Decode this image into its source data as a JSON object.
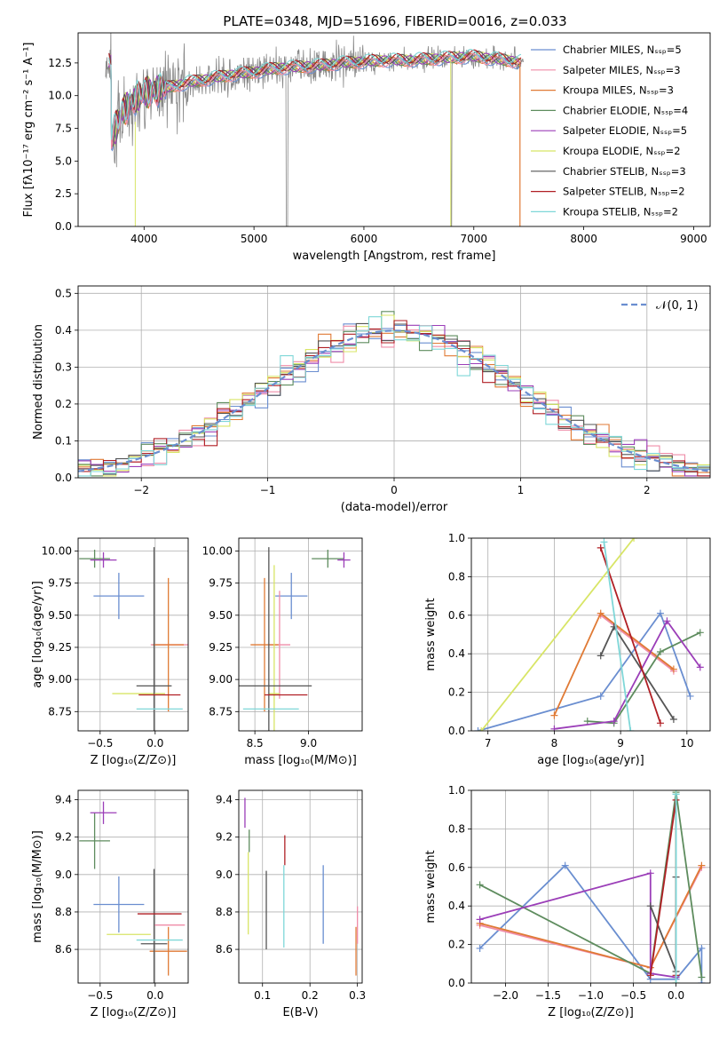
{
  "figure": {
    "title": "PLATE=0348, MJD=51696, FIBERID=0016, z=0.033"
  },
  "colors": [
    "#6a8ed0",
    "#ef8ca8",
    "#e07a35",
    "#5e8c5e",
    "#9b3eb8",
    "#d8e566",
    "#555555",
    "#b01f24",
    "#7fd7d8",
    "#888888"
  ],
  "chart_data": [
    {
      "type": "line",
      "id": "spectrum",
      "title": "PLATE=0348, MJD=51696, FIBERID=0016, z=0.033",
      "xlabel": "wavelength [Angstrom, rest frame]",
      "ylabel": "Flux [fλ10⁻¹⁷ erg cm⁻² s⁻¹ A⁻¹]",
      "xlim": [
        3400,
        9150
      ],
      "ylim": [
        0,
        14.8
      ],
      "xticks": [
        4000,
        5000,
        6000,
        7000,
        8000,
        9000
      ],
      "yticks": [
        0.0,
        2.5,
        5.0,
        7.5,
        10.0,
        12.5
      ],
      "legend_position": "top-right",
      "series": [
        {
          "name": "Chabrier MILES, Nₛₛₚ=5"
        },
        {
          "name": "Salpeter MILES, Nₛₛₚ=3"
        },
        {
          "name": "Kroupa MILES, Nₛₛₚ=3"
        },
        {
          "name": "Chabrier ELODIE, Nₛₛₚ=4"
        },
        {
          "name": "Salpeter ELODIE, Nₛₛₚ=5"
        },
        {
          "name": "Kroupa ELODIE, Nₛₛₚ=2"
        },
        {
          "name": "Chabrier STELIB, Nₛₛₚ=3"
        },
        {
          "name": "Salpeter STELIB, Nₛₛₚ=2"
        },
        {
          "name": "Kroupa STELIB, Nₛₛₚ=2"
        }
      ],
      "data_envelope": {
        "x": [
          3700,
          3800,
          3900,
          4000,
          4200,
          4400,
          4600,
          4800,
          5000,
          5200,
          5400,
          5600,
          5800,
          6000,
          6200,
          6400,
          6600,
          6800,
          7000,
          7200,
          7400
        ],
        "y": [
          6.6,
          8.8,
          9.6,
          10.2,
          10.6,
          11.0,
          11.3,
          11.6,
          11.8,
          12.1,
          12.2,
          12.3,
          12.5,
          12.6,
          12.7,
          12.7,
          12.8,
          12.9,
          13.0,
          12.8,
          12.6
        ]
      },
      "grid": false
    },
    {
      "type": "line",
      "id": "residuals",
      "xlabel": "(data-model)/error",
      "ylabel": "Normed distribution",
      "xlim": [
        -2.5,
        2.5
      ],
      "ylim": [
        0,
        0.52
      ],
      "xticks": [
        -2,
        -1,
        0,
        1,
        2
      ],
      "yticks": [
        0.0,
        0.1,
        0.2,
        0.3,
        0.4,
        0.5
      ],
      "legend": [
        {
          "name": "𝒩(0, 1)",
          "style": "dashed"
        }
      ],
      "legend_position": "top-right",
      "grid": true,
      "histogram_bins": [
        -2.5,
        2.5,
        0.1
      ],
      "reference_curve": "normal(0,1)"
    },
    {
      "type": "scatter",
      "id": "age-vs-Z",
      "xlabel": "Z [log₁₀(Z/Z⊙)]",
      "ylabel": "age  [log₁₀(age/yr)]",
      "xlim": [
        -0.7,
        0.3
      ],
      "ylim": [
        8.6,
        10.1
      ],
      "xticks": [
        -0.5,
        0.0
      ],
      "yticks": [
        8.75,
        9.0,
        9.25,
        9.5,
        9.75,
        10.0
      ],
      "grid": true,
      "points": [
        {
          "x": -0.33,
          "y": 9.65,
          "xerr": 0.23,
          "yerr": 0.18,
          "c": 0
        },
        {
          "x": 0.13,
          "y": 9.27,
          "xerr": 0.17,
          "yerr": 0.0,
          "c": 1
        },
        {
          "x": 0.12,
          "y": 9.27,
          "xerr": 0.14,
          "yerr": 0.52,
          "c": 2
        },
        {
          "x": -0.55,
          "y": 9.94,
          "xerr": 0.14,
          "yerr": 0.07,
          "c": 3
        },
        {
          "x": -0.47,
          "y": 9.93,
          "xerr": 0.12,
          "yerr": 0.06,
          "c": 4
        },
        {
          "x": -0.15,
          "y": 8.89,
          "xerr": 0.24,
          "yerr": 0.0,
          "c": 5
        },
        {
          "x": -0.01,
          "y": 8.95,
          "xerr": 0.16,
          "yerr": 1.08,
          "c": 6
        },
        {
          "x": 0.04,
          "y": 8.88,
          "xerr": 0.19,
          "yerr": 0.0,
          "c": 7
        },
        {
          "x": 0.04,
          "y": 8.77,
          "xerr": 0.21,
          "yerr": 0.0,
          "c": 8
        }
      ]
    },
    {
      "type": "scatter",
      "id": "age-vs-mass",
      "xlabel": "mass [log₁₀(M/M⊙)]",
      "ylabel": "",
      "xlim": [
        8.35,
        9.5
      ],
      "ylim": [
        8.6,
        10.1
      ],
      "xticks": [
        8.5,
        9.0
      ],
      "yticks": [
        8.75,
        9.0,
        9.25,
        9.5,
        9.75,
        10.0
      ],
      "grid": true,
      "points": [
        {
          "x": 8.84,
          "y": 9.65,
          "xerr": 0.15,
          "yerr": 0.18,
          "c": 0
        },
        {
          "x": 8.73,
          "y": 9.27,
          "xerr": 0.1,
          "yerr": 0.42,
          "c": 1
        },
        {
          "x": 8.59,
          "y": 9.27,
          "xerr": 0.13,
          "yerr": 0.52,
          "c": 2
        },
        {
          "x": 9.18,
          "y": 9.94,
          "xerr": 0.15,
          "yerr": 0.07,
          "c": 3
        },
        {
          "x": 9.33,
          "y": 9.93,
          "xerr": 0.06,
          "yerr": 0.06,
          "c": 4
        },
        {
          "x": 8.68,
          "y": 8.89,
          "xerr": 0.05,
          "yerr": 1.0,
          "c": 5
        },
        {
          "x": 8.63,
          "y": 8.95,
          "xerr": 0.4,
          "yerr": 1.08,
          "c": 6
        },
        {
          "x": 8.79,
          "y": 8.88,
          "xerr": 0.2,
          "yerr": 0.0,
          "c": 7
        },
        {
          "x": 8.65,
          "y": 8.77,
          "xerr": 0.26,
          "yerr": 0.0,
          "c": 8
        }
      ]
    },
    {
      "type": "line",
      "id": "weight-vs-age",
      "xlabel": "age  [log₁₀(age/yr)]",
      "ylabel": "mass weight",
      "xlim": [
        6.75,
        10.35
      ],
      "ylim": [
        0,
        1.0
      ],
      "xticks": [
        7,
        8,
        9,
        10
      ],
      "yticks": [
        0.0,
        0.2,
        0.4,
        0.6,
        0.8,
        1.0
      ],
      "grid": true,
      "series": [
        {
          "c": 0,
          "x": [
            6.85,
            8.7,
            9.6,
            10.05
          ],
          "y": [
            0.0,
            0.18,
            0.61,
            0.18
          ]
        },
        {
          "c": 1,
          "x": [
            8.7,
            9.8
          ],
          "y": [
            0.6,
            0.31
          ]
        },
        {
          "c": 2,
          "x": [
            8.0,
            8.7,
            9.8
          ],
          "y": [
            0.08,
            0.61,
            0.32
          ]
        },
        {
          "c": 3,
          "x": [
            8.5,
            8.9,
            9.6,
            10.2
          ],
          "y": [
            0.05,
            0.04,
            0.41,
            0.51
          ]
        },
        {
          "c": 4,
          "x": [
            8.0,
            8.9,
            9.7,
            10.2
          ],
          "y": [
            0.01,
            0.05,
            0.57,
            0.33
          ]
        },
        {
          "c": 5,
          "x": [
            6.9,
            9.2
          ],
          "y": [
            0.0,
            1.0
          ]
        },
        {
          "c": 6,
          "x": [
            8.7,
            8.9,
            9.8
          ],
          "y": [
            0.39,
            0.54,
            0.06
          ]
        },
        {
          "c": 7,
          "x": [
            8.7,
            9.6
          ],
          "y": [
            0.95,
            0.04
          ]
        },
        {
          "c": 8,
          "x": [
            8.75,
            9.15
          ],
          "y": [
            0.98,
            0.0
          ]
        }
      ]
    },
    {
      "type": "scatter",
      "id": "mass-vs-Z",
      "xlabel": "Z [log₁₀(Z/Z⊙)]",
      "ylabel": "mass [log₁₀(M/M⊙)]",
      "xlim": [
        -0.7,
        0.3
      ],
      "ylim": [
        8.42,
        9.45
      ],
      "xticks": [
        -0.5,
        0.0
      ],
      "yticks": [
        8.6,
        8.8,
        9.0,
        9.2,
        9.4
      ],
      "grid": true,
      "points": [
        {
          "x": -0.33,
          "y": 8.84,
          "xerr": 0.23,
          "yerr": 0.15,
          "c": 0
        },
        {
          "x": 0.13,
          "y": 8.73,
          "xerr": 0.14,
          "yerr": 0.0,
          "c": 1
        },
        {
          "x": 0.12,
          "y": 8.59,
          "xerr": 0.17,
          "yerr": 0.13,
          "c": 2
        },
        {
          "x": -0.55,
          "y": 9.18,
          "xerr": 0.14,
          "yerr": 0.15,
          "c": 3
        },
        {
          "x": -0.47,
          "y": 9.33,
          "xerr": 0.12,
          "yerr": 0.06,
          "c": 4
        },
        {
          "x": -0.24,
          "y": 8.68,
          "xerr": 0.2,
          "yerr": 0.0,
          "c": 5
        },
        {
          "x": -0.01,
          "y": 8.63,
          "xerr": 0.12,
          "yerr": 0.4,
          "c": 6
        },
        {
          "x": 0.04,
          "y": 8.79,
          "xerr": 0.2,
          "yerr": 0.0,
          "c": 7
        },
        {
          "x": 0.04,
          "y": 8.65,
          "xerr": 0.21,
          "yerr": 0.0,
          "c": 8
        }
      ]
    },
    {
      "type": "scatter",
      "id": "mass-vs-ebv",
      "xlabel": "E(B-V)",
      "ylabel": "",
      "xlim": [
        0.05,
        0.31
      ],
      "ylim": [
        8.42,
        9.45
      ],
      "xticks": [
        0.1,
        0.2,
        0.3
      ],
      "yticks": [
        8.6,
        8.8,
        9.0,
        9.2,
        9.4
      ],
      "grid": true,
      "points": [
        {
          "x": 0.228,
          "y": 8.84,
          "xerr": 0.0,
          "yerr": 0.21,
          "c": 0
        },
        {
          "x": 0.3,
          "y": 8.73,
          "xerr": 0.0,
          "yerr": 0.1,
          "c": 1
        },
        {
          "x": 0.297,
          "y": 8.59,
          "xerr": 0.0,
          "yerr": 0.13,
          "c": 2
        },
        {
          "x": 0.072,
          "y": 9.18,
          "xerr": 0.0,
          "yerr": 0.06,
          "c": 3
        },
        {
          "x": 0.063,
          "y": 9.33,
          "xerr": 0.0,
          "yerr": 0.08,
          "c": 4
        },
        {
          "x": 0.07,
          "y": 8.9,
          "xerr": 0.0,
          "yerr": 0.22,
          "c": 5
        },
        {
          "x": 0.108,
          "y": 8.81,
          "xerr": 0.0,
          "yerr": 0.21,
          "c": 6
        },
        {
          "x": 0.147,
          "y": 9.13,
          "xerr": 0.0,
          "yerr": 0.08,
          "c": 7
        },
        {
          "x": 0.145,
          "y": 8.83,
          "xerr": 0.0,
          "yerr": 0.22,
          "c": 8
        }
      ]
    },
    {
      "type": "line",
      "id": "weight-vs-Z",
      "xlabel": "Z [log₁₀(Z/Z⊙)]",
      "ylabel": "mass weight",
      "xlim": [
        -2.4,
        0.4
      ],
      "ylim": [
        0,
        1.0
      ],
      "xticks": [
        -2.0,
        -1.5,
        -1.0,
        -0.5,
        0.0
      ],
      "yticks": [
        0.0,
        0.2,
        0.4,
        0.6,
        0.8,
        1.0
      ],
      "grid": true,
      "series": [
        {
          "c": 0,
          "x": [
            -2.3,
            -1.3,
            -0.3,
            0.0,
            0.3,
            0.3
          ],
          "y": [
            0.18,
            0.61,
            0.02,
            0.02,
            0.18,
            0.0
          ]
        },
        {
          "c": 1,
          "x": [
            -2.3,
            -0.3,
            0.3
          ],
          "y": [
            0.3,
            0.08,
            0.6
          ]
        },
        {
          "c": 2,
          "x": [
            -2.3,
            -0.3,
            0.3
          ],
          "y": [
            0.31,
            0.08,
            0.61
          ]
        },
        {
          "c": 3,
          "x": [
            -2.3,
            -0.3,
            0.0,
            0.3
          ],
          "y": [
            0.51,
            0.05,
            0.99,
            0.03
          ]
        },
        {
          "c": 4,
          "x": [
            -2.3,
            -0.3,
            -0.3,
            0.0
          ],
          "y": [
            0.33,
            0.57,
            0.05,
            0.03
          ]
        },
        {
          "c": 5,
          "x": [
            0.0,
            0.0
          ],
          "y": [
            0.0,
            1.0
          ]
        },
        {
          "c": 6,
          "x": [
            -0.3,
            0.0,
            0.0
          ],
          "y": [
            0.4,
            0.06,
            0.55
          ]
        },
        {
          "c": 7,
          "x": [
            -0.3,
            0.0,
            0.0
          ],
          "y": [
            0.04,
            0.95,
            0.04
          ]
        },
        {
          "c": 8,
          "x": [
            0.0,
            0.0,
            0.0
          ],
          "y": [
            0.98,
            0.0,
            0.98
          ]
        }
      ]
    }
  ]
}
